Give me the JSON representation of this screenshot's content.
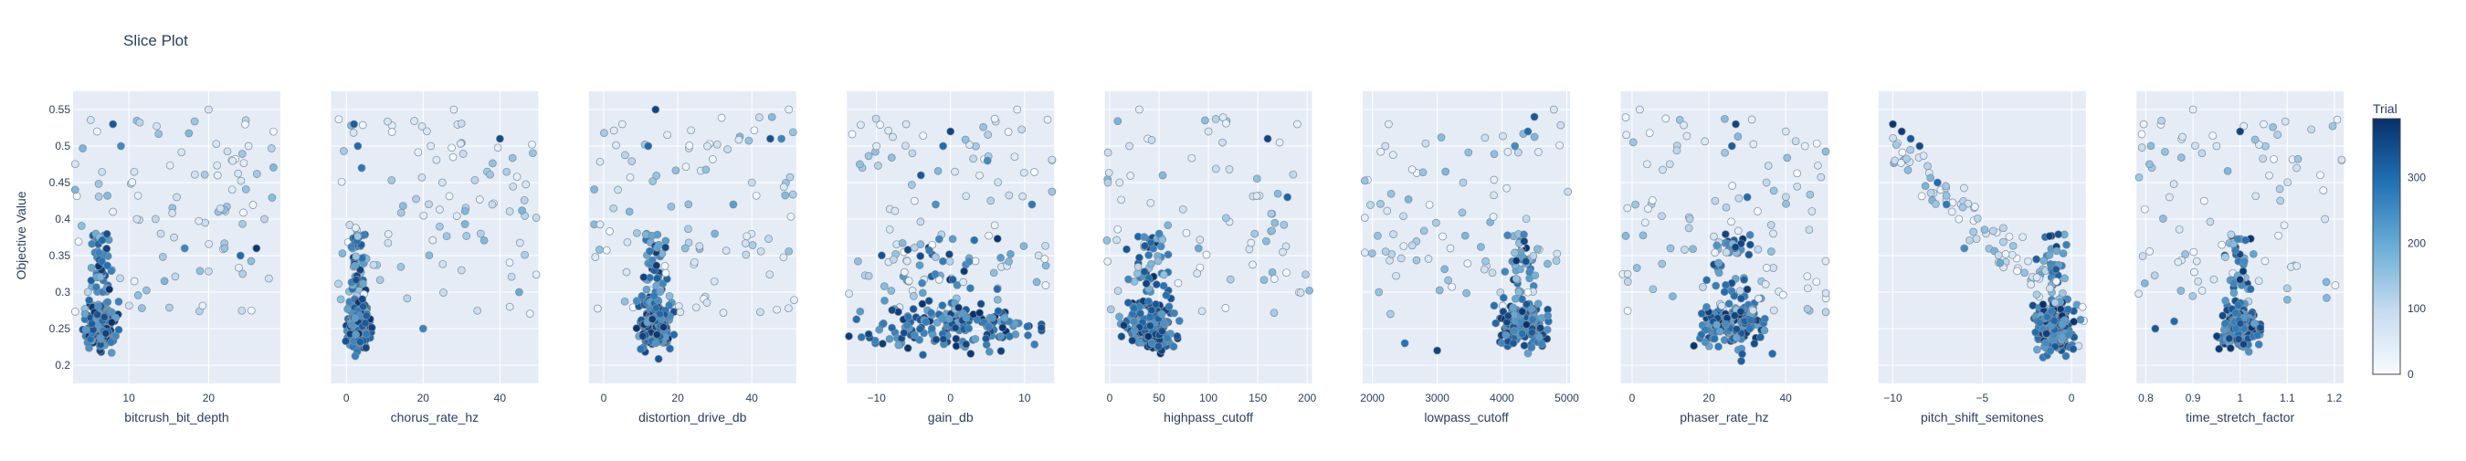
{
  "chart_data": {
    "type": "scatter",
    "title": "Slice Plot",
    "ylabel": "Objective Value",
    "ylim": [
      0.175,
      0.575
    ],
    "yticks": [
      0.2,
      0.25,
      0.3,
      0.35,
      0.4,
      0.45,
      0.5,
      0.55
    ],
    "colorbar": {
      "title": "Trial",
      "min": 0,
      "max": 390,
      "ticks": [
        0,
        100,
        200,
        300
      ],
      "colors": [
        "#f7fbff",
        "#c6dbef",
        "#6baed6",
        "#2171b5",
        "#08306b"
      ]
    },
    "panels": [
      {
        "xlabel": "bitcrush_bit_depth",
        "xlim": [
          3,
          29
        ],
        "xticks": [
          10,
          20
        ],
        "xticklabels": [
          "10",
          "20"
        ],
        "center": 6.5,
        "spread": 1.6,
        "trend": 0,
        "points": [
          [
            6,
            0.52,
            5
          ],
          [
            8,
            0.41,
            30
          ],
          [
            20,
            0.55,
            60
          ],
          [
            25,
            0.5,
            45
          ],
          [
            16,
            0.43,
            80
          ],
          [
            27,
            0.4,
            110
          ],
          [
            22,
            0.36,
            150
          ],
          [
            9,
            0.5,
            250
          ],
          [
            8,
            0.53,
            330
          ],
          [
            17,
            0.36,
            260
          ],
          [
            24,
            0.35,
            300
          ],
          [
            14,
            0.38,
            90
          ],
          [
            11,
            0.4,
            70
          ],
          [
            26,
            0.36,
            380
          ]
        ]
      },
      {
        "xlabel": "chorus_rate_hz",
        "xlim": [
          -4,
          50
        ],
        "xticks": [
          0,
          20,
          40
        ],
        "xticklabels": [
          "0",
          "20",
          "40"
        ],
        "center": 3,
        "spread": 2.5,
        "trend": 0,
        "points": [
          [
            2,
            0.53,
            320
          ],
          [
            3,
            0.5,
            300
          ],
          [
            40,
            0.51,
            350
          ],
          [
            35,
            0.38,
            120
          ],
          [
            30,
            0.33,
            90
          ],
          [
            25,
            0.45,
            70
          ],
          [
            22,
            0.5,
            50
          ],
          [
            45,
            0.3,
            200
          ],
          [
            20,
            0.25,
            260
          ],
          [
            28,
            0.55,
            40
          ],
          [
            38,
            0.42,
            100
          ],
          [
            4,
            0.47,
            280
          ]
        ]
      },
      {
        "xlabel": "distortion_drive_db",
        "xlim": [
          -4,
          52
        ],
        "xticks": [
          0,
          20,
          40
        ],
        "xticklabels": [
          "0",
          "20",
          "40"
        ],
        "center": 14,
        "spread": 4,
        "trend": 0,
        "points": [
          [
            14,
            0.55,
            360
          ],
          [
            45,
            0.51,
            340
          ],
          [
            48,
            0.51,
            260
          ],
          [
            35,
            0.42,
            220
          ],
          [
            30,
            0.38,
            180
          ],
          [
            40,
            0.45,
            90
          ],
          [
            22,
            0.36,
            160
          ],
          [
            5,
            0.53,
            40
          ],
          [
            50,
            0.55,
            30
          ],
          [
            28,
            0.5,
            60
          ],
          [
            12,
            0.5,
            300
          ]
        ]
      },
      {
        "xlabel": "gain_db",
        "xlim": [
          -14,
          14
        ],
        "xticks": [
          -10,
          0,
          10
        ],
        "xticklabels": [
          "−10",
          "0",
          "10"
        ],
        "center": 0,
        "spread": 10,
        "trend": 0,
        "points": [
          [
            0,
            0.52,
            360
          ],
          [
            -1,
            0.5,
            300
          ],
          [
            -4,
            0.46,
            330
          ],
          [
            5,
            0.48,
            250
          ],
          [
            -10,
            0.5,
            40
          ],
          [
            9,
            0.55,
            30
          ],
          [
            -6,
            0.53,
            60
          ],
          [
            11,
            0.42,
            280
          ],
          [
            -2,
            0.42,
            240
          ]
        ]
      },
      {
        "xlabel": "highpass_cutoff",
        "xlim": [
          -5,
          205
        ],
        "xticks": [
          0,
          50,
          100,
          150,
          200
        ],
        "xticklabels": [
          "0",
          "50",
          "100",
          "150",
          "200"
        ],
        "center": 40,
        "spread": 22,
        "trend": 0,
        "points": [
          [
            160,
            0.51,
            360
          ],
          [
            30,
            0.55,
            40
          ],
          [
            20,
            0.5,
            70
          ],
          [
            100,
            0.52,
            60
          ],
          [
            180,
            0.43,
            310
          ],
          [
            50,
            0.38,
            260
          ],
          [
            90,
            0.36,
            200
          ],
          [
            10,
            0.45,
            50
          ],
          [
            190,
            0.53,
            30
          ]
        ]
      },
      {
        "xlabel": "lowpass_cutoff",
        "xlim": [
          1850,
          5050
        ],
        "xticks": [
          2000,
          3000,
          4000,
          5000
        ],
        "xticklabels": [
          "2000",
          "3000",
          "4000",
          "5000"
        ],
        "center": 4300,
        "spread": 300,
        "trend": 0,
        "points": [
          [
            4500,
            0.54,
            330
          ],
          [
            4400,
            0.52,
            300
          ],
          [
            2250,
            0.53,
            40
          ],
          [
            2100,
            0.3,
            150
          ],
          [
            2500,
            0.23,
            290
          ],
          [
            3000,
            0.22,
            360
          ],
          [
            4200,
            0.5,
            250
          ],
          [
            4800,
            0.55,
            60
          ],
          [
            2200,
            0.5,
            80
          ],
          [
            3400,
            0.45,
            120
          ]
        ]
      },
      {
        "xlabel": "phaser_rate_hz",
        "xlim": [
          -3,
          51
        ],
        "xticks": [
          0,
          20,
          40
        ],
        "xticklabels": [
          "0",
          "20",
          "40"
        ],
        "center": 26,
        "spread": 7,
        "trend": 0,
        "points": [
          [
            27,
            0.53,
            360
          ],
          [
            26,
            0.5,
            320
          ],
          [
            2,
            0.55,
            40
          ],
          [
            40,
            0.52,
            60
          ],
          [
            45,
            0.5,
            30
          ],
          [
            35,
            0.45,
            100
          ],
          [
            15,
            0.4,
            120
          ],
          [
            10,
            0.36,
            150
          ],
          [
            30,
            0.43,
            300
          ]
        ]
      },
      {
        "xlabel": "pitch_shift_semitones",
        "xlim": [
          -10.8,
          0.8
        ],
        "xticks": [
          -10,
          -5,
          0
        ],
        "xticklabels": [
          "−10",
          "−5",
          "0"
        ],
        "center": -1,
        "spread": 0.9,
        "trend": 1,
        "points": [
          [
            -10,
            0.53,
            380
          ],
          [
            -9.5,
            0.52,
            370
          ],
          [
            -8.5,
            0.5,
            350
          ],
          [
            -7.5,
            0.45,
            300
          ],
          [
            -6,
            0.36,
            250
          ],
          [
            -4,
            0.34,
            200
          ],
          [
            -9,
            0.51,
            330
          ],
          [
            -7,
            0.42,
            280
          ]
        ]
      },
      {
        "xlabel": "time_stretch_factor",
        "xlim": [
          0.78,
          1.22
        ],
        "xticks": [
          0.8,
          0.9,
          1,
          1.1,
          1.2
        ],
        "xticklabels": [
          "0.8",
          "0.9",
          "1",
          "1.1",
          "1.2"
        ],
        "center": 1.0,
        "spread": 0.035,
        "trend": 0,
        "points": [
          [
            0.9,
            0.55,
            40
          ],
          [
            1.0,
            0.52,
            360
          ],
          [
            0.95,
            0.5,
            60
          ],
          [
            1.05,
            0.53,
            30
          ],
          [
            0.82,
            0.25,
            330
          ],
          [
            0.86,
            0.26,
            300
          ],
          [
            1.18,
            0.4,
            70
          ],
          [
            0.85,
            0.43,
            50
          ],
          [
            1.12,
            0.47,
            80
          ]
        ]
      }
    ]
  }
}
